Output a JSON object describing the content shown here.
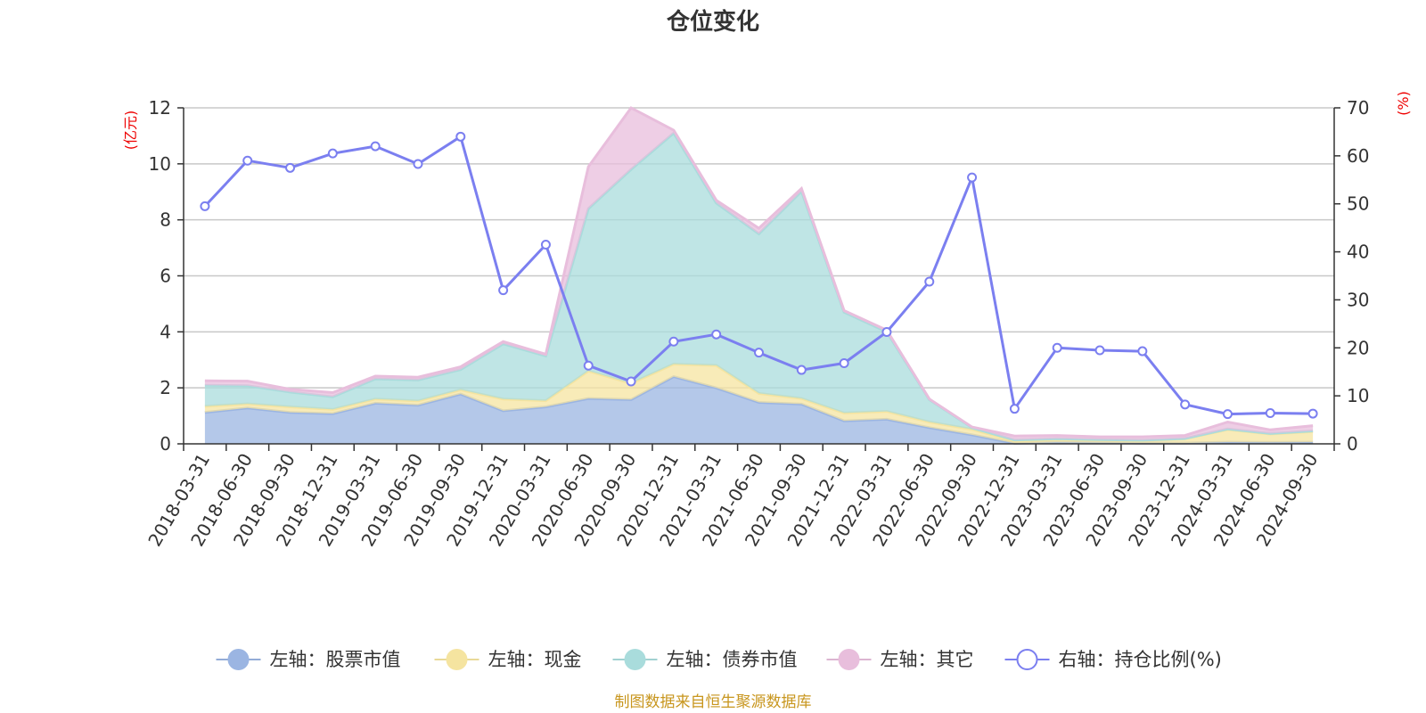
{
  "chart_data": {
    "type": "area",
    "title": "仓位变化",
    "left_axis_unit": "(亿元)",
    "right_axis_unit": "(%)",
    "left_ylim": [
      0,
      12
    ],
    "left_ticks": [
      0,
      2,
      4,
      6,
      8,
      10,
      12
    ],
    "right_ylim": [
      0,
      70
    ],
    "right_ticks": [
      0,
      10,
      20,
      30,
      40,
      50,
      60,
      70
    ],
    "categories": [
      "2018-03-31",
      "2018-06-30",
      "2018-09-30",
      "2018-12-31",
      "2019-03-31",
      "2019-06-30",
      "2019-09-30",
      "2019-12-31",
      "2020-03-31",
      "2020-06-30",
      "2020-09-30",
      "2020-12-31",
      "2021-03-31",
      "2021-06-30",
      "2021-09-30",
      "2021-12-31",
      "2022-03-31",
      "2022-06-30",
      "2022-09-30",
      "2022-12-31",
      "2023-03-31",
      "2023-06-30",
      "2023-09-30",
      "2023-12-31",
      "2024-03-31",
      "2024-06-30",
      "2024-09-30"
    ],
    "series": [
      {
        "name": "左轴：股票市值",
        "axis": "left",
        "kind": "stacked-area",
        "color": "#9bb5e2",
        "values": [
          1.12,
          1.28,
          1.12,
          1.08,
          1.45,
          1.38,
          1.78,
          1.18,
          1.32,
          1.62,
          1.58,
          2.4,
          2.0,
          1.48,
          1.42,
          0.82,
          0.88,
          0.58,
          0.32,
          0.02,
          0.05,
          0.04,
          0.03,
          0.03,
          0.06,
          0.05,
          0.06
        ]
      },
      {
        "name": "左轴：现金",
        "axis": "left",
        "kind": "stacked-area",
        "color": "#f5e4a0",
        "values": [
          0.22,
          0.15,
          0.2,
          0.15,
          0.15,
          0.15,
          0.15,
          0.42,
          0.22,
          0.98,
          0.58,
          0.45,
          0.8,
          0.32,
          0.2,
          0.28,
          0.28,
          0.2,
          0.2,
          0.08,
          0.1,
          0.09,
          0.08,
          0.15,
          0.45,
          0.3,
          0.38
        ]
      },
      {
        "name": "左轴：债券市值",
        "axis": "left",
        "kind": "stacked-area",
        "color": "#a9dcdc",
        "values": [
          0.75,
          0.65,
          0.53,
          0.45,
          0.72,
          0.75,
          0.72,
          1.97,
          1.6,
          5.8,
          7.64,
          8.25,
          5.8,
          5.7,
          7.4,
          3.6,
          2.84,
          0.8,
          0.06,
          0.04,
          0.03,
          0.02,
          0.02,
          0.01,
          0.02,
          0.02,
          0.02
        ]
      },
      {
        "name": "左轴：其它",
        "axis": "left",
        "kind": "stacked-area",
        "color": "#e8bedc",
        "values": [
          0.16,
          0.16,
          0.1,
          0.15,
          0.1,
          0.1,
          0.1,
          0.08,
          0.06,
          1.5,
          2.2,
          0.1,
          0.1,
          0.2,
          0.1,
          0.06,
          0.06,
          0.02,
          0.02,
          0.14,
          0.12,
          0.1,
          0.12,
          0.11,
          0.25,
          0.13,
          0.19
        ]
      },
      {
        "name": "右轴：持仓比例(%)",
        "axis": "right",
        "kind": "line",
        "color": "#7b7ff0",
        "values": [
          49.5,
          59,
          57.5,
          60.5,
          62,
          58.3,
          64,
          32,
          41.5,
          16.3,
          13,
          21.3,
          22.8,
          19,
          15.4,
          16.8,
          23.3,
          33.8,
          55.5,
          7.3,
          20,
          19.5,
          19.3,
          8.2,
          6.2,
          6.4,
          6.3
        ]
      }
    ]
  },
  "source_note": "制图数据来自恒生聚源数据库"
}
